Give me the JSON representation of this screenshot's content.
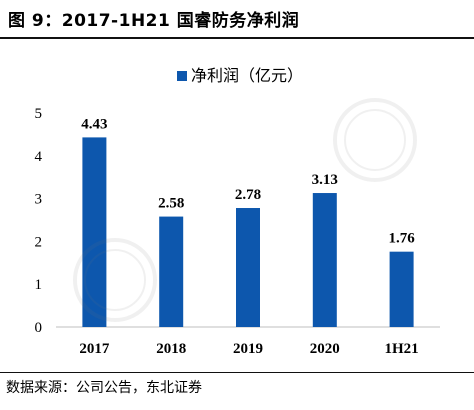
{
  "figure_title": "图 9：2017-1H21 国睿防务净利润",
  "source_note": "数据来源：公司公告，东北证券",
  "colors": {
    "bar": "#0d57ad",
    "axis": "#bfbfbf",
    "text": "#000000"
  },
  "watermark_icon": "stamp-watermark-icon",
  "chart_data": {
    "type": "bar",
    "title": "",
    "categories": [
      "2017",
      "2018",
      "2019",
      "2020",
      "1H21"
    ],
    "series": [
      {
        "name": "净利润（亿元）",
        "values": [
          4.43,
          2.58,
          2.78,
          3.13,
          1.76
        ]
      }
    ],
    "data_labels": [
      "4.43",
      "2.58",
      "2.78",
      "3.13",
      "1.76"
    ],
    "ylim": [
      0,
      5
    ],
    "yticks": [
      "0",
      "1",
      "2",
      "3",
      "4",
      "5"
    ],
    "xlabel": "",
    "ylabel": "",
    "legend_position": "top",
    "grid": false
  }
}
